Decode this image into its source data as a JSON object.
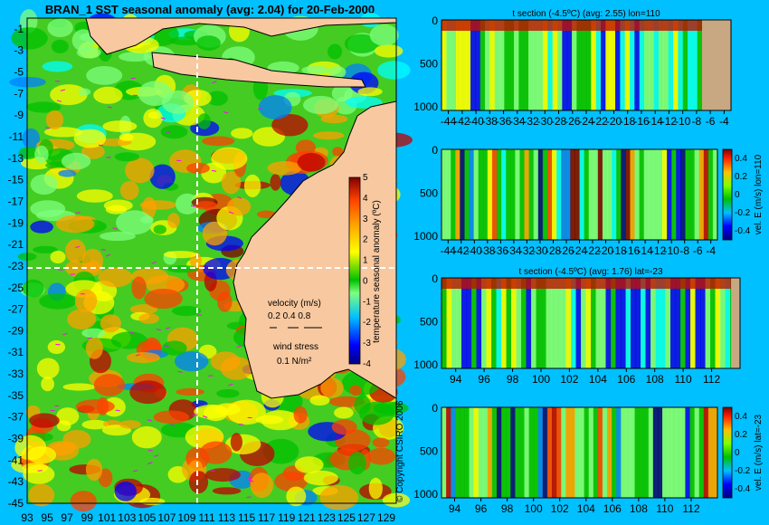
{
  "colors": {
    "background": "#00c0ff",
    "land": "#f8c8a0",
    "land_section": "#c8a882",
    "coastline": "#000000",
    "vector_arrows": "#ff00ff",
    "section_lines": "#ffffff"
  },
  "colormap": [
    "#00007f",
    "#0000ff",
    "#0080ff",
    "#00ffff",
    "#7fff7f",
    "#00c000",
    "#ffff00",
    "#ffa000",
    "#ff4000",
    "#bf0000",
    "#800000"
  ],
  "copyright": "© Copyright CSIRO 2006",
  "chart_data": [
    {
      "type": "heatmap",
      "id": "sst-map",
      "title": "BRAN_1  SST seasonal anomaly (avg: 2.04) for 20-Feb-2000",
      "x_ticks": [
        "93",
        "95",
        "97",
        "99",
        "101",
        "103",
        "105",
        "107",
        "109",
        "111",
        "113",
        "115",
        "117",
        "119",
        "121",
        "123",
        "125",
        "127",
        "129"
      ],
      "y_ticks": [
        "-1",
        "-3",
        "-5",
        "-7",
        "-9",
        "-11",
        "-13",
        "-15",
        "-17",
        "-19",
        "-21",
        "-23",
        "-25",
        "-27",
        "-29",
        "-31",
        "-33",
        "-35",
        "-37",
        "-39",
        "-41",
        "-43",
        "-45"
      ],
      "xlim": [
        93,
        130
      ],
      "ylim": [
        -45,
        0
      ],
      "section_lines": {
        "lon": 110,
        "lat": -23
      },
      "colorbar": {
        "label": "temperature seasonal anomaly (ºC)",
        "ticks": [
          "5",
          "4",
          "3",
          "2",
          "1",
          "0",
          "-1",
          "-2",
          "-3",
          "-4"
        ],
        "range": [
          -4,
          5
        ]
      },
      "legend": {
        "velocity_label": "velocity (m/s)",
        "velocity_scale": "0.2 0.4 0.8",
        "wind_label": "wind stress",
        "wind_scale": "0.1 N/m²"
      }
    },
    {
      "type": "heatmap",
      "id": "t-section-lon",
      "title": "t section (-4.5ºC) (avg: 2.55) lon=110",
      "x_ticks": [
        "-44",
        "-42",
        "-40",
        "-38",
        "-36",
        "-34",
        "-32",
        "-30",
        "-28",
        "-26",
        "-24",
        "-22",
        "-20",
        "-18",
        "-16",
        "-14",
        "-12",
        "-10",
        "-8",
        "-6",
        "-4"
      ],
      "y_ticks": [
        "0",
        "500",
        "1000"
      ],
      "xlim": [
        -45,
        -3
      ],
      "ylim": [
        1050,
        0
      ]
    },
    {
      "type": "heatmap",
      "id": "vel-section-lon",
      "title": "",
      "x_ticks": [
        "-44",
        "-42",
        "-40",
        "-38",
        "-36",
        "-34",
        "-32",
        "-30",
        "-28",
        "-26",
        "-24",
        "-22",
        "-20",
        "-18",
        "-16",
        "-14",
        "-12",
        "-10",
        "-8",
        "-6",
        "-4"
      ],
      "y_ticks": [
        "0",
        "500",
        "1000"
      ],
      "xlim": [
        -45,
        -3
      ],
      "ylim": [
        1050,
        0
      ],
      "colorbar": {
        "label": "vel. E (m/s) lon=110",
        "ticks": [
          "0.4",
          "0.2",
          "0",
          "-0.2",
          "-0.4"
        ],
        "range": [
          -0.5,
          0.5
        ]
      }
    },
    {
      "type": "heatmap",
      "id": "t-section-lat",
      "title": "t section (-4.5ºC) (avg: 1.76) lat=-23",
      "x_ticks": [
        "94",
        "96",
        "98",
        "100",
        "102",
        "104",
        "106",
        "108",
        "110",
        "112"
      ],
      "y_ticks": [
        "0",
        "500",
        "1000"
      ],
      "xlim": [
        93,
        114
      ],
      "ylim": [
        1050,
        0
      ]
    },
    {
      "type": "heatmap",
      "id": "vel-section-lat",
      "title": "",
      "x_ticks": [
        "94",
        "96",
        "98",
        "100",
        "102",
        "104",
        "106",
        "108",
        "110",
        "112"
      ],
      "y_ticks": [
        "0",
        "500",
        "1000"
      ],
      "xlim": [
        93,
        114
      ],
      "ylim": [
        1050,
        0
      ],
      "colorbar": {
        "label": "vel. E (m/s) lat=-23",
        "ticks": [
          "0.4",
          "0.2",
          "0",
          "-0.2",
          "-0.4"
        ],
        "range": [
          -0.5,
          0.5
        ]
      }
    }
  ]
}
